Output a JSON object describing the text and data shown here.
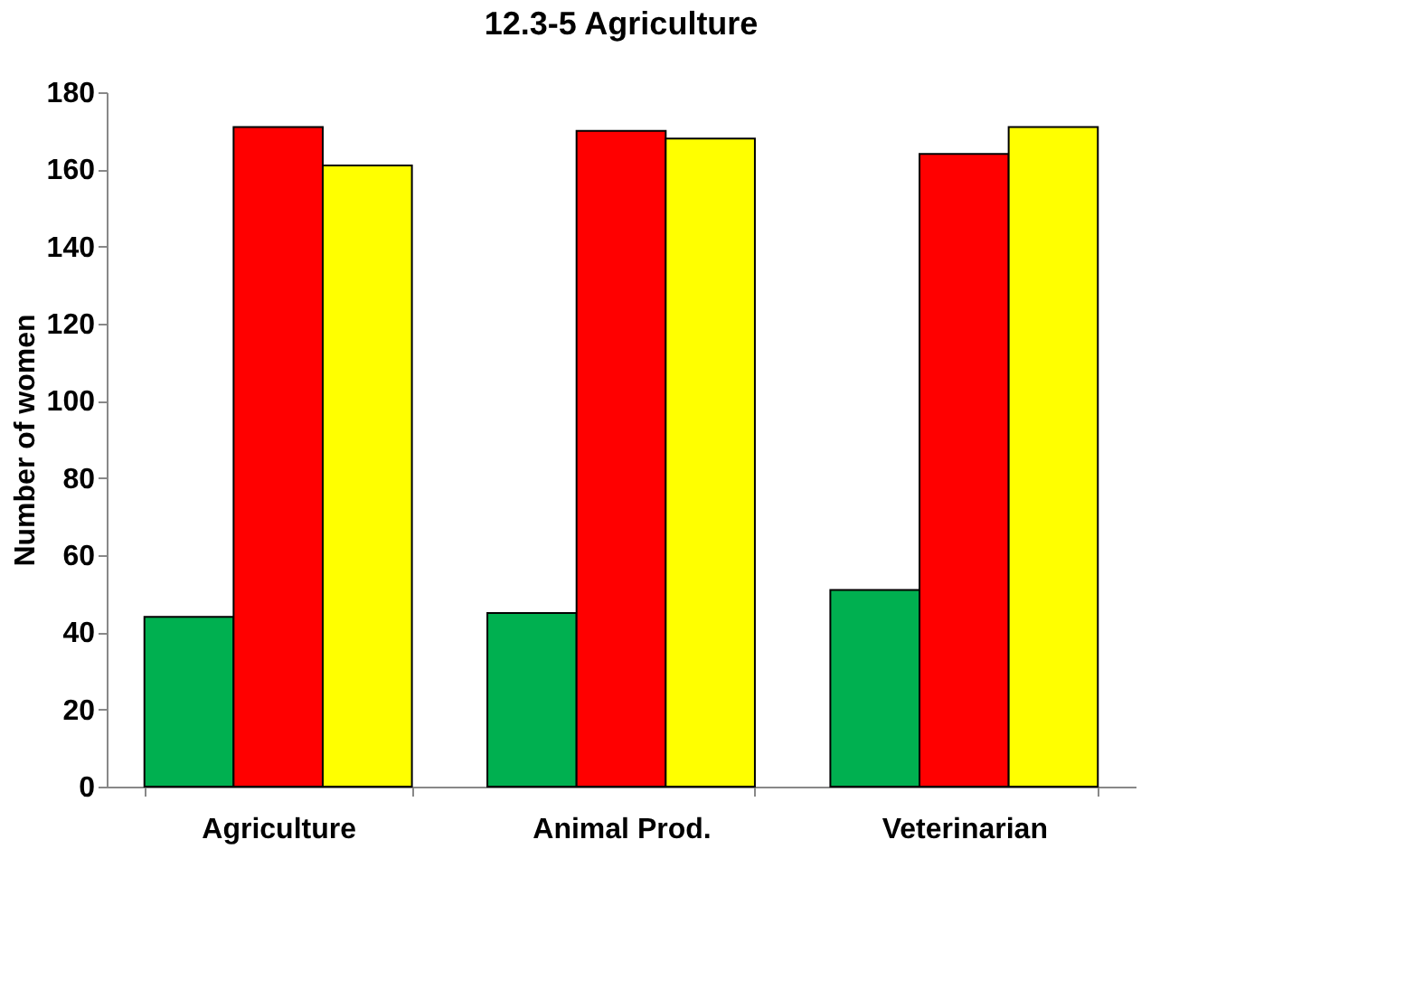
{
  "chart_data": {
    "type": "bar",
    "title": "12.3-5 Agriculture",
    "ylabel": "Number of women",
    "categories": [
      "Agriculture",
      "Animal Prod.",
      "Veterinarian"
    ],
    "series": [
      {
        "color": "#00b050",
        "values": [
          44,
          45,
          51
        ]
      },
      {
        "color": "#ff0000",
        "values": [
          171,
          170,
          164
        ]
      },
      {
        "color": "#ffff00",
        "values": [
          161,
          168,
          171
        ]
      }
    ],
    "ylim": [
      0,
      180
    ],
    "yticks": [
      0,
      20,
      40,
      60,
      80,
      100,
      120,
      140,
      160,
      180
    ],
    "grid": false,
    "legend": false
  }
}
